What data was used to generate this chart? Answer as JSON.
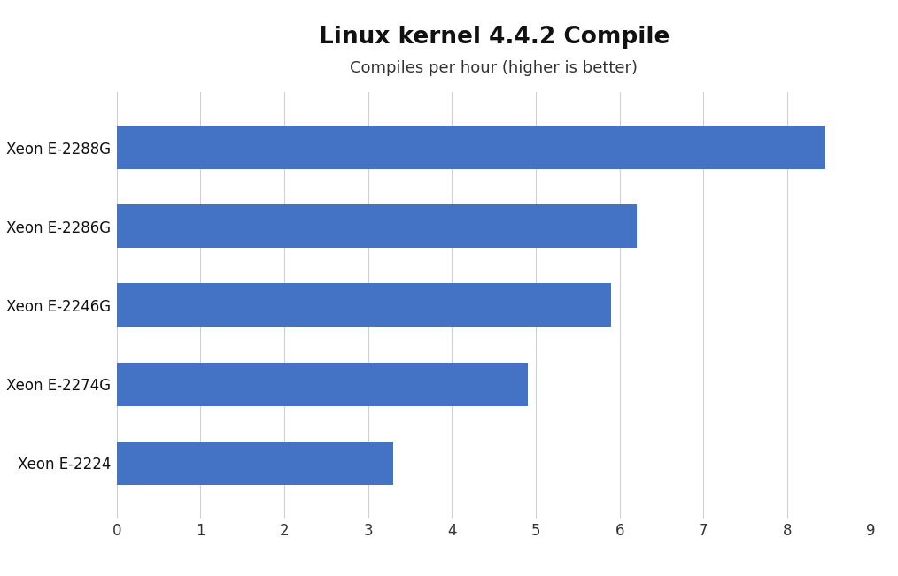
{
  "title": "Linux kernel 4.4.2 Compile",
  "subtitle": "Compiles per hour (higher is better)",
  "categories": [
    "Xeon E-2288G",
    "Xeon E-2286G",
    "Xeon E-2246G",
    "Xeon E-2274G",
    "Xeon E-2224"
  ],
  "values": [
    8.45,
    6.2,
    5.9,
    4.9,
    3.3
  ],
  "bar_color": "#4472c4",
  "xlim": [
    0,
    9
  ],
  "xticks": [
    0,
    1,
    2,
    3,
    4,
    5,
    6,
    7,
    8,
    9
  ],
  "background_color": "#ffffff",
  "grid_color": "#d0d0d0",
  "title_fontsize": 19,
  "subtitle_fontsize": 13,
  "label_fontsize": 12,
  "tick_fontsize": 12,
  "bar_height": 0.55
}
